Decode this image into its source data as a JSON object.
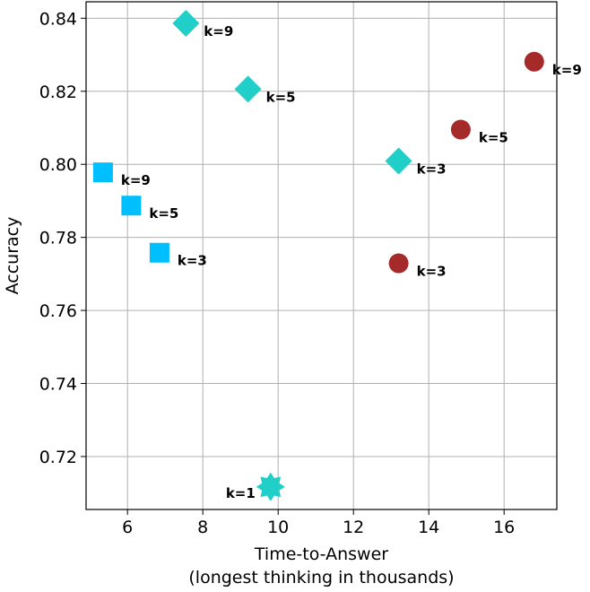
{
  "chart_data": {
    "type": "scatter",
    "title": "",
    "xlabel": "Time-to-Answer",
    "xlabel_line2": "(longest thinking in thousands)",
    "ylabel": "Accuracy",
    "xlim": [
      4.9,
      17.4
    ],
    "ylim": [
      0.7055,
      0.8445
    ],
    "xticks": [
      6,
      8,
      10,
      12,
      14,
      16
    ],
    "xtick_labels": [
      "6",
      "8",
      "10",
      "12",
      "14",
      "16"
    ],
    "yticks": [
      0.72,
      0.74,
      0.76,
      0.78,
      0.8,
      0.82,
      0.84
    ],
    "ytick_labels": [
      "0.72",
      "0.74",
      "0.76",
      "0.78",
      "0.80",
      "0.82",
      "0.84"
    ],
    "grid": true,
    "series": [
      {
        "name": "squares",
        "marker": "square",
        "color": "#00BFFF",
        "points": [
          {
            "x": 5.35,
            "y": 0.7978,
            "label": "k=9"
          },
          {
            "x": 6.1,
            "y": 0.7887,
            "label": "k=5"
          },
          {
            "x": 6.85,
            "y": 0.7758,
            "label": "k=3"
          }
        ]
      },
      {
        "name": "diamonds",
        "marker": "diamond",
        "color": "#20CFC8",
        "points": [
          {
            "x": 7.55,
            "y": 0.8386,
            "label": "k=9"
          },
          {
            "x": 9.2,
            "y": 0.8206,
            "label": "k=5"
          },
          {
            "x": 13.2,
            "y": 0.8009,
            "label": "k=3"
          }
        ]
      },
      {
        "name": "circles",
        "marker": "circle",
        "color": "#A52A2A",
        "points": [
          {
            "x": 16.8,
            "y": 0.8281,
            "label": "k=9"
          },
          {
            "x": 14.85,
            "y": 0.8095,
            "label": "k=5"
          },
          {
            "x": 13.2,
            "y": 0.7729,
            "label": "k=3"
          }
        ]
      },
      {
        "name": "star",
        "marker": "star",
        "color": "#20CFC8",
        "points": [
          {
            "x": 9.8,
            "y": 0.7117,
            "label": "k=1"
          }
        ]
      }
    ]
  }
}
